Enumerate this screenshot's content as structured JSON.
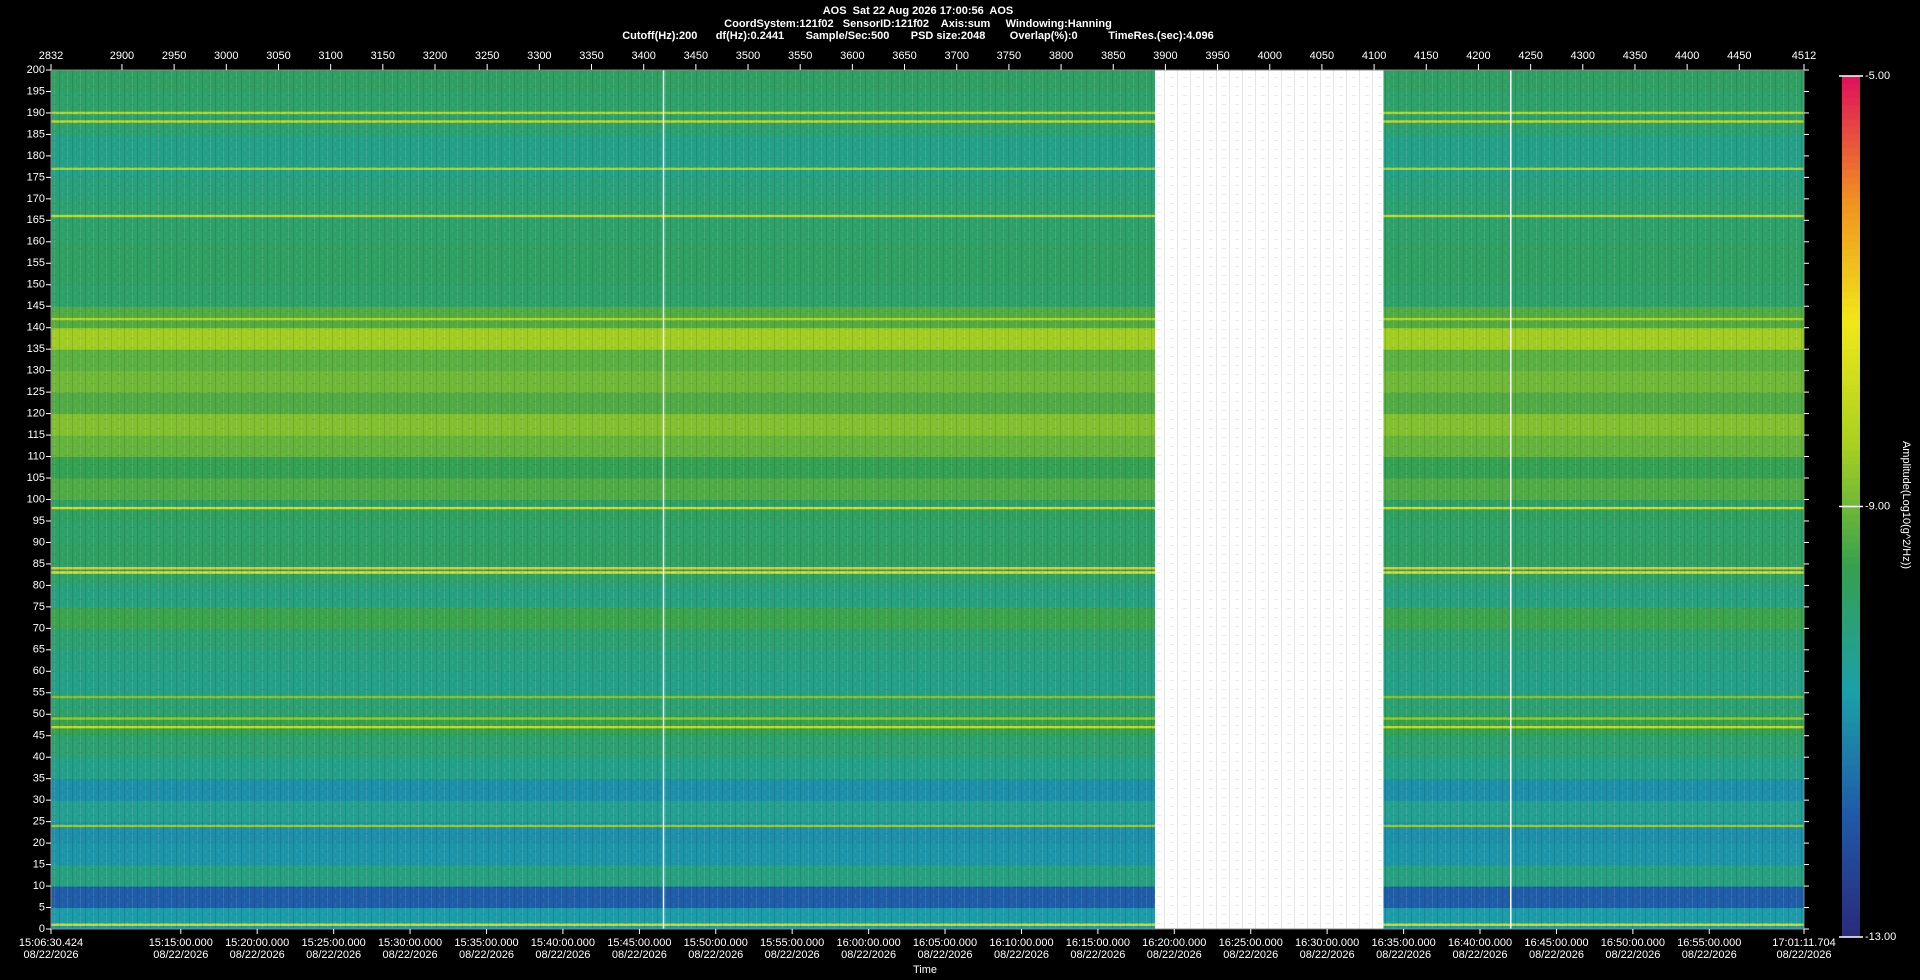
{
  "chart_data": {
    "type": "heatmap",
    "title": "AOS  Sat 22 Aug 2026 17:00:56  AOS",
    "subtitle": "CoordSystem:121f02   SensorID:121f02    Axis:sum     Windowing:Hanning",
    "parameters": "Cutoff(Hz):200      df(Hz):0.2441       Sample/Sec:500       PSD size:2048        Overlap(%):0          TimeRes.(sec):4.096",
    "xlabel": "Time",
    "colorbar_label": "Amplitude(Log10(g^2/Hz))",
    "xlim": [
      2832,
      4512
    ],
    "xticks": [
      2832,
      2900,
      2950,
      3000,
      3050,
      3100,
      3150,
      3200,
      3250,
      3300,
      3350,
      3400,
      3450,
      3500,
      3550,
      3600,
      3650,
      3700,
      3750,
      3800,
      3850,
      3900,
      3950,
      4000,
      4050,
      4100,
      4150,
      4200,
      4250,
      4300,
      4350,
      4400,
      4450,
      4512
    ],
    "time_ticks": [
      {
        "value": 2832,
        "label": "15:06:30.424",
        "date": "08/22/2026"
      },
      {
        "value": 2956.4,
        "label": "15:15:00.000",
        "date": "08/22/2026"
      },
      {
        "value": 3029.6,
        "label": "15:20:00.000",
        "date": "08/22/2026"
      },
      {
        "value": 3102.9,
        "label": "15:25:00.000",
        "date": "08/22/2026"
      },
      {
        "value": 3176.1,
        "label": "15:30:00.000",
        "date": "08/22/2026"
      },
      {
        "value": 3249.4,
        "label": "15:35:00.000",
        "date": "08/22/2026"
      },
      {
        "value": 3322.6,
        "label": "15:40:00.000",
        "date": "08/22/2026"
      },
      {
        "value": 3395.9,
        "label": "15:45:00.000",
        "date": "08/22/2026"
      },
      {
        "value": 3469.1,
        "label": "15:50:00.000",
        "date": "08/22/2026"
      },
      {
        "value": 3542.3,
        "label": "15:55:00.000",
        "date": "08/22/2026"
      },
      {
        "value": 3615.6,
        "label": "16:00:00.000",
        "date": "08/22/2026"
      },
      {
        "value": 3688.8,
        "label": "16:05:00.000",
        "date": "08/22/2026"
      },
      {
        "value": 3762.1,
        "label": "16:10:00.000",
        "date": "08/22/2026"
      },
      {
        "value": 3835.3,
        "label": "16:15:00.000",
        "date": "08/22/2026"
      },
      {
        "value": 3908.5,
        "label": "16:20:00.000",
        "date": "08/22/2026"
      },
      {
        "value": 3981.8,
        "label": "16:25:00.000",
        "date": "08/22/2026"
      },
      {
        "value": 4055.0,
        "label": "16:30:00.000",
        "date": "08/22/2026"
      },
      {
        "value": 4128.3,
        "label": "16:35:00.000",
        "date": "08/22/2026"
      },
      {
        "value": 4201.5,
        "label": "16:40:00.000",
        "date": "08/22/2026"
      },
      {
        "value": 4274.8,
        "label": "16:45:00.000",
        "date": "08/22/2026"
      },
      {
        "value": 4348.0,
        "label": "16:50:00.000",
        "date": "08/22/2026"
      },
      {
        "value": 4421.2,
        "label": "16:55:00.000",
        "date": "08/22/2026"
      },
      {
        "value": 4512,
        "label": "17:01:11.704",
        "date": "08/22/2026"
      }
    ],
    "ylim": [
      0,
      200
    ],
    "yticks": [
      0,
      5,
      10,
      15,
      20,
      25,
      30,
      35,
      40,
      45,
      50,
      55,
      60,
      65,
      70,
      75,
      80,
      85,
      90,
      95,
      100,
      105,
      110,
      115,
      120,
      125,
      130,
      135,
      140,
      145,
      150,
      155,
      160,
      165,
      170,
      175,
      180,
      185,
      190,
      195,
      200
    ],
    "zlim": [
      -13,
      -5
    ],
    "zticks": [
      {
        "value": -5,
        "label": "-5.00"
      },
      {
        "value": -9,
        "label": "-9.00"
      },
      {
        "value": -13,
        "label": "-13.00"
      }
    ],
    "colormap": [
      "#2a2a7a",
      "#1f5aa8",
      "#1ca0a8",
      "#35a050",
      "#a8d020",
      "#f0e818",
      "#f09020",
      "#e0105a"
    ],
    "data_ranges": [
      [
        2832,
        3890
      ],
      [
        4109,
        4512
      ]
    ],
    "freq_bins": [
      0,
      5,
      10,
      15,
      20,
      25,
      30,
      35,
      40,
      45,
      50,
      55,
      60,
      65,
      70,
      75,
      80,
      85,
      90,
      95,
      100,
      105,
      110,
      115,
      120,
      125,
      130,
      135,
      140,
      145,
      150,
      155,
      160,
      165,
      170,
      175,
      180,
      185,
      190,
      195,
      200
    ],
    "amplitude": [
      -10.8,
      -11.8,
      -10.2,
      -10.9,
      -11.0,
      -10.4,
      -11.0,
      -10.3,
      -10.0,
      -9.6,
      -10.0,
      -10.3,
      -10.2,
      -10.0,
      -9.5,
      -10.2,
      -9.9,
      -9.8,
      -9.9,
      -9.8,
      -9.3,
      -9.6,
      -9.1,
      -8.8,
      -9.3,
      -9.0,
      -9.2,
      -8.5,
      -9.3,
      -9.9,
      -9.8,
      -9.8,
      -9.9,
      -10.0,
      -10.1,
      -10.3,
      -10.3,
      -10.0,
      -9.9,
      -9.8
    ],
    "lines": [
      {
        "freq": 190,
        "amplitude": -8.2
      },
      {
        "freq": 188,
        "amplitude": -8.0
      },
      {
        "freq": 177,
        "amplitude": -8.3
      },
      {
        "freq": 166,
        "amplitude": -8.0
      },
      {
        "freq": 142,
        "amplitude": -8.3
      },
      {
        "freq": 98,
        "amplitude": -7.8
      },
      {
        "freq": 84,
        "amplitude": -6.8
      },
      {
        "freq": 83,
        "amplitude": -7.5
      },
      {
        "freq": 54,
        "amplitude": -8.8
      },
      {
        "freq": 49,
        "amplitude": -8.6
      },
      {
        "freq": 47,
        "amplitude": -8.0
      },
      {
        "freq": 24,
        "amplitude": -8.6
      },
      {
        "freq": 1,
        "amplitude": -7.8
      }
    ],
    "markers": [
      3419,
      4231
    ]
  }
}
